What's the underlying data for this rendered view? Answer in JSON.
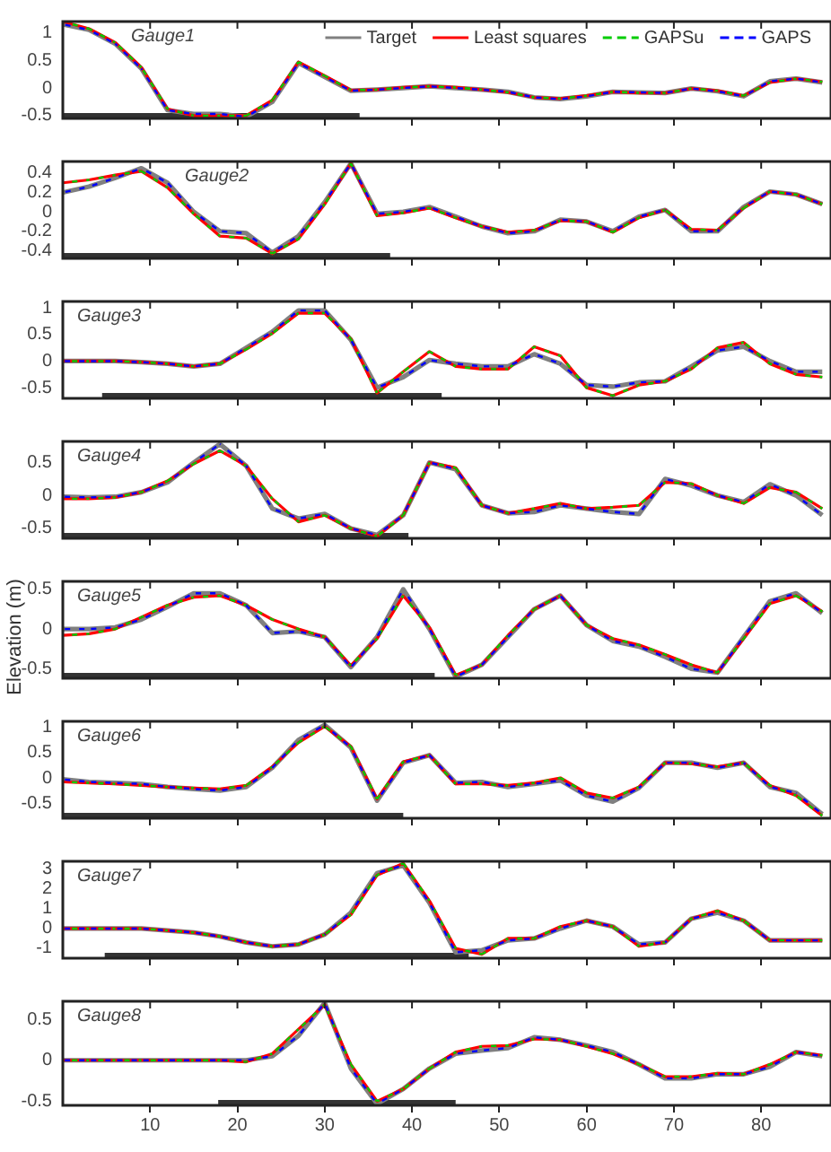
{
  "chart_data": [
    {
      "type": "line",
      "annotations": [
        "Gauge1"
      ],
      "legend": "top right",
      "tick_labels": "y",
      "xlim": [
        0,
        88
      ],
      "xticks": [
        10,
        20,
        30,
        40,
        50,
        60,
        70,
        80
      ],
      "ylim": [
        -0.55,
        1.2
      ],
      "yticks": [
        -0.5,
        0,
        0.5,
        1
      ],
      "bands": [
        {
          "axis": "x",
          "from": 0,
          "to": 34,
          "color": "#333333"
        }
      ],
      "x": [
        0,
        3,
        6,
        9,
        12,
        15,
        18,
        21,
        24,
        27,
        30,
        33,
        36,
        39,
        42,
        45,
        48,
        51,
        54,
        57,
        60,
        63,
        66,
        69,
        72,
        75,
        78,
        81,
        84,
        87
      ],
      "series": [
        {
          "name": "Target",
          "color": "#808080",
          "line_style": "solid",
          "values": [
            1.15,
            1.05,
            0.8,
            0.35,
            -0.4,
            -0.47,
            -0.47,
            -0.52,
            -0.25,
            0.45,
            0.2,
            -0.05,
            -0.03,
            0.0,
            0.03,
            0.0,
            -0.03,
            -0.07,
            -0.17,
            -0.2,
            -0.15,
            -0.07,
            -0.08,
            -0.09,
            -0.01,
            -0.06,
            -0.15,
            0.12,
            0.17,
            0.1
          ]
        },
        {
          "name": "Least squares",
          "color": "#ff0000",
          "line_style": "solid",
          "values": [
            1.2,
            1.07,
            0.82,
            0.37,
            -0.38,
            -0.5,
            -0.5,
            -0.5,
            -0.22,
            0.47,
            0.22,
            -0.04,
            -0.03,
            0.01,
            0.03,
            0.01,
            -0.03,
            -0.08,
            -0.17,
            -0.19,
            -0.14,
            -0.07,
            -0.09,
            -0.09,
            -0.01,
            -0.05,
            -0.14,
            0.1,
            0.17,
            0.11
          ]
        },
        {
          "name": "GAPSu",
          "color": "#00cc00",
          "line_style": "dashed",
          "values": [
            1.2,
            1.07,
            0.82,
            0.37,
            -0.38,
            -0.5,
            -0.5,
            -0.5,
            -0.22,
            0.47,
            0.22,
            -0.04,
            -0.03,
            0.01,
            0.03,
            0.01,
            -0.03,
            -0.08,
            -0.17,
            -0.19,
            -0.14,
            -0.07,
            -0.09,
            -0.09,
            -0.01,
            -0.05,
            -0.14,
            0.1,
            0.17,
            0.11
          ]
        },
        {
          "name": "GAPS",
          "color": "#0000ff",
          "line_style": "dashed",
          "values": [
            1.15,
            1.05,
            0.8,
            0.35,
            -0.4,
            -0.47,
            -0.47,
            -0.52,
            -0.25,
            0.45,
            0.2,
            -0.05,
            -0.03,
            0.0,
            0.03,
            0.0,
            -0.03,
            -0.07,
            -0.17,
            -0.2,
            -0.15,
            -0.07,
            -0.08,
            -0.09,
            -0.01,
            -0.06,
            -0.15,
            0.12,
            0.17,
            0.1
          ]
        }
      ]
    },
    {
      "type": "line",
      "annotations": [
        "Gauge2"
      ],
      "tick_labels": "y",
      "xlim": [
        0,
        88
      ],
      "xticks": [
        10,
        20,
        30,
        40,
        50,
        60,
        70,
        80
      ],
      "ylim": [
        -0.48,
        0.52
      ],
      "yticks": [
        -0.4,
        -0.2,
        0,
        0.2,
        0.4
      ],
      "bands": [
        {
          "axis": "x",
          "from": 0,
          "to": 37.5,
          "color": "#333333"
        }
      ],
      "x": [
        0,
        3,
        6,
        9,
        12,
        15,
        18,
        21,
        24,
        27,
        30,
        33,
        36,
        39,
        42,
        45,
        48,
        51,
        54,
        57,
        60,
        63,
        66,
        69,
        72,
        75,
        78,
        81,
        84,
        87
      ],
      "series": [
        {
          "color": "#808080",
          "line_style": "solid",
          "values": [
            0.2,
            0.26,
            0.35,
            0.45,
            0.3,
            0.0,
            -0.2,
            -0.22,
            -0.42,
            -0.25,
            0.1,
            0.5,
            -0.02,
            0.0,
            0.05,
            -0.05,
            -0.15,
            -0.22,
            -0.2,
            -0.08,
            -0.1,
            -0.2,
            -0.05,
            0.02,
            -0.2,
            -0.2,
            0.05,
            0.21,
            0.18,
            0.08
          ]
        },
        {
          "color": "#ff0000",
          "line_style": "solid",
          "values": [
            0.3,
            0.33,
            0.38,
            0.42,
            0.25,
            -0.02,
            -0.25,
            -0.27,
            -0.43,
            -0.28,
            0.08,
            0.5,
            -0.04,
            -0.01,
            0.04,
            -0.06,
            -0.15,
            -0.21,
            -0.19,
            -0.09,
            -0.1,
            -0.21,
            -0.06,
            0.02,
            -0.18,
            -0.19,
            0.04,
            0.21,
            0.18,
            0.08
          ]
        },
        {
          "color": "#00cc00",
          "line_style": "dashed",
          "values": [
            0.3,
            0.33,
            0.38,
            0.42,
            0.25,
            -0.02,
            -0.25,
            -0.27,
            -0.43,
            -0.28,
            0.08,
            0.5,
            -0.04,
            -0.01,
            0.04,
            -0.06,
            -0.15,
            -0.21,
            -0.19,
            -0.09,
            -0.1,
            -0.21,
            -0.06,
            0.02,
            -0.18,
            -0.19,
            0.04,
            0.21,
            0.18,
            0.08
          ]
        },
        {
          "color": "#0000ff",
          "line_style": "dashed",
          "values": [
            0.2,
            0.26,
            0.35,
            0.45,
            0.3,
            0.0,
            -0.2,
            -0.22,
            -0.42,
            -0.25,
            0.1,
            0.5,
            -0.02,
            0.0,
            0.05,
            -0.05,
            -0.15,
            -0.22,
            -0.2,
            -0.08,
            -0.1,
            -0.2,
            -0.05,
            0.02,
            -0.2,
            -0.2,
            0.05,
            0.21,
            0.18,
            0.08
          ]
        }
      ]
    },
    {
      "type": "line",
      "annotations": [
        "Gauge3"
      ],
      "tick_labels": "y",
      "xlim": [
        0,
        88
      ],
      "xticks": [
        10,
        20,
        30,
        40,
        50,
        60,
        70,
        80
      ],
      "ylim": [
        -0.7,
        1.12
      ],
      "yticks": [
        -0.5,
        0,
        0.5,
        1
      ],
      "bands": [
        {
          "axis": "x",
          "from": 4.5,
          "to": 43.4,
          "color": "#333333"
        }
      ],
      "x": [
        0,
        3,
        6,
        9,
        12,
        15,
        18,
        21,
        24,
        27,
        30,
        33,
        36,
        39,
        42,
        45,
        48,
        51,
        54,
        57,
        60,
        63,
        66,
        69,
        72,
        75,
        78,
        81,
        84,
        87
      ],
      "series": [
        {
          "color": "#808080",
          "line_style": "solid",
          "values": [
            0,
            0,
            0,
            -0.02,
            -0.05,
            -0.1,
            -0.05,
            0.25,
            0.55,
            0.95,
            0.95,
            0.4,
            -0.5,
            -0.3,
            0.02,
            -0.05,
            -0.1,
            -0.1,
            0.13,
            -0.05,
            -0.45,
            -0.48,
            -0.4,
            -0.38,
            -0.1,
            0.2,
            0.27,
            0.0,
            -0.2,
            -0.2
          ]
        },
        {
          "color": "#ff0000",
          "line_style": "solid",
          "values": [
            0,
            0,
            0,
            -0.02,
            -0.05,
            -0.1,
            -0.05,
            0.22,
            0.52,
            0.9,
            0.9,
            0.42,
            -0.6,
            -0.2,
            0.18,
            -0.1,
            -0.15,
            -0.15,
            0.27,
            0.1,
            -0.5,
            -0.65,
            -0.45,
            -0.38,
            -0.15,
            0.25,
            0.35,
            -0.05,
            -0.25,
            -0.3
          ]
        },
        {
          "color": "#00cc00",
          "line_style": "dashed",
          "values": [
            0,
            0,
            0,
            -0.02,
            -0.05,
            -0.1,
            -0.05,
            0.22,
            0.52,
            0.9,
            0.9,
            0.42,
            -0.6,
            -0.2,
            0.18,
            -0.1,
            -0.15,
            -0.15,
            0.27,
            0.1,
            -0.5,
            -0.65,
            -0.45,
            -0.38,
            -0.15,
            0.25,
            0.35,
            -0.05,
            -0.25,
            -0.3
          ]
        },
        {
          "color": "#0000ff",
          "line_style": "dashed",
          "values": [
            0,
            0,
            0,
            -0.02,
            -0.05,
            -0.1,
            -0.05,
            0.25,
            0.55,
            0.95,
            0.95,
            0.4,
            -0.5,
            -0.3,
            0.02,
            -0.05,
            -0.1,
            -0.1,
            0.13,
            -0.05,
            -0.45,
            -0.48,
            -0.4,
            -0.38,
            -0.1,
            0.2,
            0.27,
            0.0,
            -0.2,
            -0.2
          ]
        }
      ]
    },
    {
      "type": "line",
      "annotations": [
        "Gauge4"
      ],
      "tick_labels": "y",
      "xlim": [
        0,
        88
      ],
      "xticks": [
        10,
        20,
        30,
        40,
        50,
        60,
        70,
        80
      ],
      "ylim": [
        -0.65,
        0.82
      ],
      "yticks": [
        -0.5,
        0,
        0.5
      ],
      "bands": [
        {
          "axis": "x",
          "from": 0,
          "to": 39.6,
          "color": "#333333"
        }
      ],
      "x": [
        0,
        3,
        6,
        9,
        12,
        15,
        18,
        21,
        24,
        27,
        30,
        33,
        36,
        39,
        42,
        45,
        48,
        51,
        54,
        57,
        60,
        63,
        66,
        69,
        72,
        75,
        78,
        81,
        84,
        87
      ],
      "series": [
        {
          "color": "#808080",
          "line_style": "solid",
          "values": [
            -0.02,
            -0.03,
            -0.02,
            0.05,
            0.2,
            0.5,
            0.78,
            0.45,
            -0.2,
            -0.35,
            -0.28,
            -0.5,
            -0.6,
            -0.3,
            0.5,
            0.4,
            -0.15,
            -0.27,
            -0.25,
            -0.15,
            -0.2,
            -0.25,
            -0.28,
            0.25,
            0.15,
            0.0,
            -0.1,
            0.17,
            0.0,
            -0.3
          ]
        },
        {
          "color": "#ff0000",
          "line_style": "solid",
          "values": [
            -0.05,
            -0.05,
            -0.03,
            0.05,
            0.22,
            0.48,
            0.68,
            0.45,
            -0.05,
            -0.4,
            -0.3,
            -0.5,
            -0.62,
            -0.3,
            0.5,
            0.42,
            -0.15,
            -0.27,
            -0.2,
            -0.12,
            -0.2,
            -0.18,
            -0.15,
            0.2,
            0.18,
            0.0,
            -0.12,
            0.12,
            0.05,
            -0.2
          ]
        },
        {
          "color": "#00cc00",
          "line_style": "dashed",
          "values": [
            -0.05,
            -0.05,
            -0.03,
            0.05,
            0.22,
            0.48,
            0.68,
            0.45,
            -0.05,
            -0.4,
            -0.3,
            -0.5,
            -0.62,
            -0.3,
            0.5,
            0.42,
            -0.15,
            -0.27,
            -0.2,
            -0.12,
            -0.2,
            -0.18,
            -0.15,
            0.2,
            0.18,
            0.0,
            -0.12,
            0.12,
            0.05,
            -0.2
          ]
        },
        {
          "color": "#0000ff",
          "line_style": "dashed",
          "values": [
            -0.02,
            -0.03,
            -0.02,
            0.05,
            0.2,
            0.5,
            0.78,
            0.45,
            -0.2,
            -0.35,
            -0.28,
            -0.5,
            -0.6,
            -0.3,
            0.5,
            0.4,
            -0.15,
            -0.27,
            -0.25,
            -0.15,
            -0.2,
            -0.25,
            -0.28,
            0.25,
            0.15,
            0.0,
            -0.1,
            0.17,
            0.0,
            -0.3
          ]
        }
      ]
    },
    {
      "type": "line",
      "annotations": [
        "Gauge5"
      ],
      "ylabel": "Elevation (m)",
      "tick_labels": "y",
      "xlim": [
        0,
        88
      ],
      "xticks": [
        10,
        20,
        30,
        40,
        50,
        60,
        70,
        80
      ],
      "ylim": [
        -0.62,
        0.6
      ],
      "yticks": [
        -0.5,
        0,
        0.5
      ],
      "bands": [
        {
          "axis": "x",
          "from": 0,
          "to": 42.6,
          "color": "#333333"
        }
      ],
      "x": [
        0,
        3,
        6,
        9,
        12,
        15,
        18,
        21,
        24,
        27,
        30,
        33,
        36,
        39,
        42,
        45,
        48,
        51,
        54,
        57,
        60,
        63,
        66,
        69,
        72,
        75,
        78,
        81,
        84,
        87
      ],
      "series": [
        {
          "color": "#808080",
          "line_style": "solid",
          "values": [
            0,
            0,
            0.02,
            0.12,
            0.28,
            0.45,
            0.45,
            0.3,
            -0.05,
            -0.03,
            -0.1,
            -0.48,
            -0.1,
            0.5,
            0.0,
            -0.6,
            -0.45,
            -0.1,
            0.25,
            0.42,
            0.05,
            -0.15,
            -0.22,
            -0.35,
            -0.5,
            -0.55,
            -0.1,
            0.35,
            0.45,
            0.2
          ]
        },
        {
          "color": "#ff0000",
          "line_style": "solid",
          "values": [
            -0.08,
            -0.06,
            0.0,
            0.15,
            0.3,
            0.4,
            0.42,
            0.3,
            0.12,
            0.0,
            -0.1,
            -0.46,
            -0.12,
            0.42,
            0.02,
            -0.58,
            -0.45,
            -0.08,
            0.25,
            0.42,
            0.05,
            -0.12,
            -0.2,
            -0.32,
            -0.45,
            -0.55,
            -0.12,
            0.32,
            0.42,
            0.22
          ]
        },
        {
          "color": "#00cc00",
          "line_style": "dashed",
          "values": [
            -0.08,
            -0.06,
            0.0,
            0.15,
            0.3,
            0.4,
            0.42,
            0.3,
            0.12,
            0.0,
            -0.1,
            -0.46,
            -0.12,
            0.42,
            0.02,
            -0.58,
            -0.45,
            -0.08,
            0.25,
            0.42,
            0.05,
            -0.12,
            -0.2,
            -0.32,
            -0.45,
            -0.55,
            -0.12,
            0.32,
            0.42,
            0.22
          ]
        },
        {
          "color": "#0000ff",
          "line_style": "dashed",
          "values": [
            0,
            0,
            0.02,
            0.12,
            0.28,
            0.45,
            0.45,
            0.3,
            -0.05,
            -0.03,
            -0.1,
            -0.48,
            -0.1,
            0.5,
            0.0,
            -0.6,
            -0.45,
            -0.1,
            0.25,
            0.42,
            0.05,
            -0.15,
            -0.22,
            -0.35,
            -0.5,
            -0.55,
            -0.1,
            0.35,
            0.45,
            0.2
          ]
        }
      ]
    },
    {
      "type": "line",
      "annotations": [
        "Gauge6"
      ],
      "tick_labels": "y",
      "xlim": [
        0,
        88
      ],
      "xticks": [
        10,
        20,
        30,
        40,
        50,
        60,
        70,
        80
      ],
      "ylim": [
        -0.8,
        1.12
      ],
      "yticks": [
        -0.5,
        0,
        0.5,
        1
      ],
      "bands": [
        {
          "axis": "x",
          "from": 0,
          "to": 39,
          "color": "#333333"
        }
      ],
      "x": [
        0,
        3,
        6,
        9,
        12,
        15,
        18,
        21,
        24,
        27,
        30,
        33,
        36,
        39,
        42,
        45,
        48,
        51,
        54,
        57,
        60,
        63,
        66,
        69,
        72,
        75,
        78,
        81,
        84,
        87
      ],
      "series": [
        {
          "color": "#808080",
          "line_style": "solid",
          "values": [
            -0.03,
            -0.08,
            -0.1,
            -0.12,
            -0.18,
            -0.22,
            -0.25,
            -0.18,
            0.2,
            0.75,
            1.05,
            0.6,
            -0.45,
            0.3,
            0.45,
            -0.1,
            -0.08,
            -0.18,
            -0.12,
            -0.05,
            -0.35,
            -0.47,
            -0.2,
            0.3,
            0.3,
            0.2,
            0.3,
            -0.18,
            -0.3,
            -0.72
          ]
        },
        {
          "color": "#ff0000",
          "line_style": "solid",
          "values": [
            -0.08,
            -0.1,
            -0.12,
            -0.15,
            -0.18,
            -0.2,
            -0.22,
            -0.15,
            0.22,
            0.7,
            1.02,
            0.62,
            -0.42,
            0.32,
            0.45,
            -0.12,
            -0.12,
            -0.15,
            -0.1,
            0.0,
            -0.3,
            -0.4,
            -0.18,
            0.3,
            0.28,
            0.22,
            0.3,
            -0.15,
            -0.35,
            -0.75
          ]
        },
        {
          "color": "#00cc00",
          "line_style": "dashed",
          "values": [
            -0.08,
            -0.1,
            -0.12,
            -0.15,
            -0.18,
            -0.2,
            -0.22,
            -0.15,
            0.22,
            0.7,
            1.02,
            0.62,
            -0.42,
            0.32,
            0.45,
            -0.12,
            -0.12,
            -0.15,
            -0.1,
            0.0,
            -0.3,
            -0.4,
            -0.18,
            0.3,
            0.28,
            0.22,
            0.3,
            -0.15,
            -0.35,
            -0.75
          ]
        },
        {
          "color": "#0000ff",
          "line_style": "dashed",
          "values": [
            -0.03,
            -0.08,
            -0.1,
            -0.12,
            -0.18,
            -0.22,
            -0.25,
            -0.18,
            0.2,
            0.75,
            1.05,
            0.6,
            -0.45,
            0.3,
            0.45,
            -0.1,
            -0.08,
            -0.18,
            -0.12,
            -0.05,
            -0.35,
            -0.47,
            -0.2,
            0.3,
            0.3,
            0.2,
            0.3,
            -0.18,
            -0.3,
            -0.72
          ]
        }
      ]
    },
    {
      "type": "line",
      "annotations": [
        "Gauge7"
      ],
      "tick_labels": "y",
      "xlim": [
        0,
        88
      ],
      "xticks": [
        10,
        20,
        30,
        40,
        50,
        60,
        70,
        80
      ],
      "ylim": [
        -1.5,
        3.4
      ],
      "yticks": [
        -1,
        0,
        1,
        2,
        3
      ],
      "bands": [
        {
          "axis": "x",
          "from": 4.8,
          "to": 46.5,
          "color": "#333333"
        }
      ],
      "x": [
        0,
        3,
        6,
        9,
        12,
        15,
        18,
        21,
        24,
        27,
        30,
        33,
        36,
        39,
        42,
        45,
        48,
        51,
        54,
        57,
        60,
        63,
        66,
        69,
        72,
        75,
        78,
        81,
        84,
        87
      ],
      "series": [
        {
          "color": "#808080",
          "line_style": "solid",
          "values": [
            0,
            0,
            0,
            0,
            -0.1,
            -0.2,
            -0.4,
            -0.7,
            -0.9,
            -0.8,
            -0.3,
            0.8,
            2.8,
            3.2,
            1.3,
            -1.2,
            -1.1,
            -0.6,
            -0.5,
            0.0,
            0.4,
            0.1,
            -0.8,
            -0.7,
            0.5,
            0.8,
            0.4,
            -0.6,
            -0.6,
            -0.6
          ]
        },
        {
          "color": "#ff0000",
          "line_style": "solid",
          "values": [
            0,
            0,
            0,
            0,
            -0.1,
            -0.2,
            -0.4,
            -0.7,
            -0.9,
            -0.8,
            -0.3,
            0.7,
            2.7,
            3.3,
            1.4,
            -1.0,
            -1.3,
            -0.5,
            -0.5,
            0.1,
            0.4,
            0.1,
            -0.9,
            -0.7,
            0.5,
            0.9,
            0.4,
            -0.6,
            -0.6,
            -0.6
          ]
        },
        {
          "color": "#00cc00",
          "line_style": "dashed",
          "values": [
            0,
            0,
            0,
            0,
            -0.1,
            -0.2,
            -0.4,
            -0.7,
            -0.9,
            -0.8,
            -0.3,
            0.7,
            2.7,
            3.3,
            1.4,
            -1.0,
            -1.3,
            -0.5,
            -0.5,
            0.1,
            0.4,
            0.1,
            -0.9,
            -0.7,
            0.5,
            0.9,
            0.4,
            -0.6,
            -0.6,
            -0.6
          ]
        },
        {
          "color": "#0000ff",
          "line_style": "dashed",
          "values": [
            0,
            0,
            0,
            0,
            -0.1,
            -0.2,
            -0.4,
            -0.7,
            -0.9,
            -0.8,
            -0.3,
            0.8,
            2.8,
            3.2,
            1.3,
            -1.2,
            -1.1,
            -0.6,
            -0.5,
            0.0,
            0.4,
            0.1,
            -0.8,
            -0.7,
            0.5,
            0.8,
            0.4,
            -0.6,
            -0.6,
            -0.6
          ]
        }
      ]
    },
    {
      "type": "line",
      "annotations": [
        "Gauge8"
      ],
      "xlim": [
        0,
        88
      ],
      "xticks": [
        10,
        20,
        30,
        40,
        50,
        60,
        70,
        80
      ],
      "ylim": [
        -0.55,
        0.72
      ],
      "yticks": [
        -0.5,
        0,
        0.5
      ],
      "bands": [
        {
          "axis": "x",
          "from": 17.8,
          "to": 45,
          "color": "#333333"
        }
      ],
      "x": [
        0,
        3,
        6,
        9,
        12,
        15,
        18,
        21,
        24,
        27,
        30,
        33,
        36,
        39,
        42,
        45,
        48,
        51,
        54,
        57,
        60,
        63,
        66,
        69,
        72,
        75,
        78,
        81,
        84,
        87
      ],
      "series": [
        {
          "color": "#808080",
          "line_style": "solid",
          "values": [
            0,
            0,
            0,
            0,
            0,
            0,
            0,
            0,
            0.05,
            0.3,
            0.7,
            -0.1,
            -0.53,
            -0.35,
            -0.1,
            0.08,
            0.12,
            0.15,
            0.28,
            0.25,
            0.18,
            0.1,
            -0.05,
            -0.22,
            -0.22,
            -0.17,
            -0.17,
            -0.08,
            0.1,
            0.05
          ]
        },
        {
          "color": "#ff0000",
          "line_style": "solid",
          "values": [
            0,
            0,
            0,
            0,
            0,
            0,
            0,
            -0.02,
            0.08,
            0.38,
            0.68,
            -0.05,
            -0.5,
            -0.35,
            -0.1,
            0.1,
            0.17,
            0.18,
            0.26,
            0.25,
            0.17,
            0.08,
            -0.05,
            -0.2,
            -0.2,
            -0.16,
            -0.17,
            -0.05,
            0.1,
            0.06
          ]
        },
        {
          "color": "#00cc00",
          "line_style": "dashed",
          "values": [
            0,
            0,
            0,
            0,
            0,
            0,
            0,
            -0.02,
            0.08,
            0.38,
            0.68,
            -0.05,
            -0.5,
            -0.35,
            -0.1,
            0.1,
            0.17,
            0.18,
            0.26,
            0.25,
            0.17,
            0.08,
            -0.05,
            -0.2,
            -0.2,
            -0.16,
            -0.17,
            -0.05,
            0.1,
            0.06
          ]
        },
        {
          "color": "#0000ff",
          "line_style": "dashed",
          "values": [
            0,
            0,
            0,
            0,
            0,
            0,
            0,
            0,
            0.05,
            0.3,
            0.7,
            -0.1,
            -0.53,
            -0.35,
            -0.1,
            0.08,
            0.12,
            0.15,
            0.28,
            0.25,
            0.18,
            0.1,
            -0.05,
            -0.22,
            -0.22,
            -0.17,
            -0.17,
            -0.08,
            0.1,
            0.05
          ]
        }
      ]
    }
  ]
}
